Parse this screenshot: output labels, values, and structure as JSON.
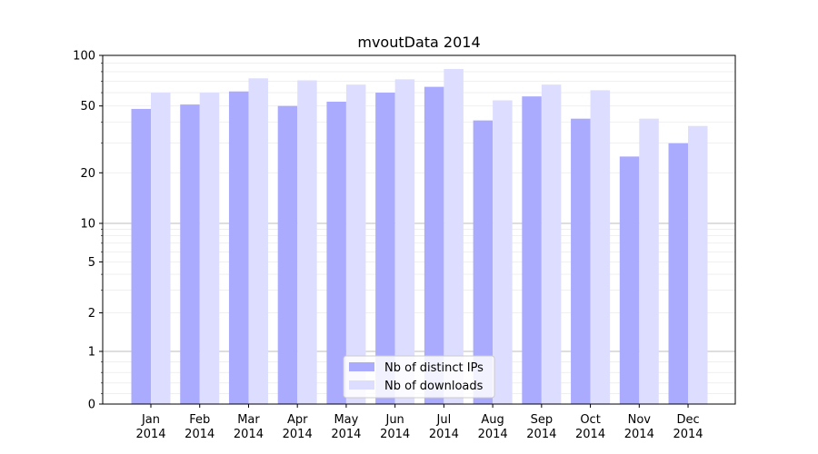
{
  "chart_data": {
    "type": "bar",
    "title": "mvoutData 2014",
    "xlabel": "",
    "ylabel": "",
    "yscale": "symlog",
    "ylim": [
      0,
      100
    ],
    "yticks": [
      0,
      1,
      2,
      5,
      10,
      20,
      50,
      100
    ],
    "ytick_labels": [
      "0",
      "1",
      "2",
      "5",
      "10",
      "20",
      "50",
      "100"
    ],
    "categories": [
      [
        "Jan",
        "2014"
      ],
      [
        "Feb",
        "2014"
      ],
      [
        "Mar",
        "2014"
      ],
      [
        "Apr",
        "2014"
      ],
      [
        "May",
        "2014"
      ],
      [
        "Jun",
        "2014"
      ],
      [
        "Jul",
        "2014"
      ],
      [
        "Aug",
        "2014"
      ],
      [
        "Sep",
        "2014"
      ],
      [
        "Oct",
        "2014"
      ],
      [
        "Nov",
        "2014"
      ],
      [
        "Dec",
        "2014"
      ]
    ],
    "series": [
      {
        "name": "Nb of distinct IPs",
        "color": "#aaaaff",
        "values": [
          48,
          51,
          61,
          50,
          53,
          60,
          65,
          41,
          57,
          42,
          25,
          30
        ]
      },
      {
        "name": "Nb of downloads",
        "color": "#ddddff",
        "values": [
          60,
          60,
          73,
          71,
          67,
          72,
          83,
          54,
          67,
          62,
          42,
          38
        ]
      }
    ],
    "grid": true,
    "legend_position": "bottom-center"
  }
}
